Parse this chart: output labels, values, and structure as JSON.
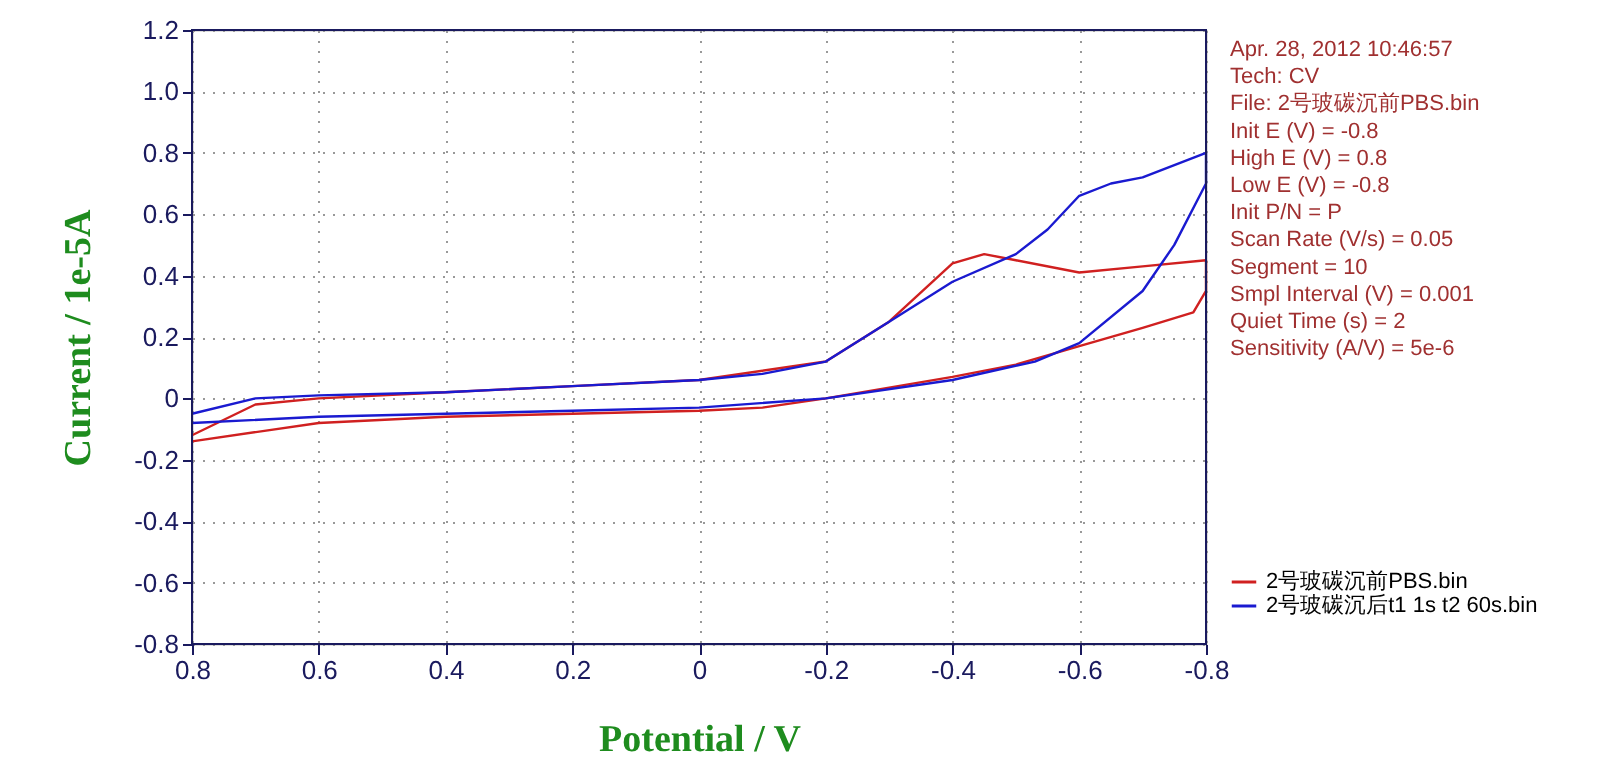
{
  "chart_data": {
    "type": "line",
    "xlabel": "Potential / V",
    "ylabel": "Current / 1e-5A",
    "xlim": [
      0.8,
      -0.8
    ],
    "xticks": [
      0.8,
      0.6,
      0.4,
      0.2,
      0,
      -0.2,
      -0.4,
      -0.6,
      -0.8
    ],
    "ylim": [
      -0.8,
      1.2
    ],
    "yticks": [
      -0.8,
      -0.6,
      -0.4,
      -0.2,
      0,
      0.2,
      0.4,
      0.6,
      0.8,
      {
        "value": 1.0,
        "label": "1.0"
      },
      1.2
    ],
    "grid": true,
    "legend": "right",
    "marker": "none",
    "line_style": "solid",
    "annotations": [
      "Apr. 28, 2012   10:46:57",
      "Tech: CV",
      "File: 2号玻碳沉前PBS.bin",
      "Init E (V) = -0.8",
      "High E (V) = 0.8",
      "Low E (V) = -0.8",
      "Init P/N = P",
      "Scan Rate (V/s) = 0.05",
      "Segment = 10",
      "Smpl Interval (V) = 0.001",
      "Quiet Time (s) = 2",
      "Sensitivity (A/V) = 5e-6"
    ],
    "series": [
      {
        "name": "2号玻碳沉前PBS.bin",
        "color": "#d02020",
        "x": [
          0.8,
          0.7,
          0.6,
          0.4,
          0.2,
          0,
          -0.2,
          -0.3,
          -0.4,
          -0.45,
          -0.5,
          -0.6,
          -0.7,
          -0.8,
          -0.8,
          -0.78,
          -0.7,
          -0.6,
          -0.5,
          -0.4,
          -0.2,
          -0.1,
          0,
          0.2,
          0.4,
          0.6,
          0.8
        ],
        "values": [
          -0.12,
          -0.02,
          0.0,
          0.02,
          0.04,
          0.06,
          0.12,
          0.25,
          0.44,
          0.47,
          0.45,
          0.41,
          0.43,
          0.45,
          0.35,
          0.28,
          0.23,
          0.17,
          0.11,
          0.07,
          0.0,
          -0.03,
          -0.04,
          -0.05,
          -0.06,
          -0.08,
          -0.14
        ]
      },
      {
        "name": "2号玻碳沉后t1 1s t2 60s.bin",
        "color": "#1a1ad0",
        "x": [
          0.8,
          0.7,
          0.6,
          0.4,
          0.2,
          0,
          -0.1,
          -0.2,
          -0.3,
          -0.4,
          -0.5,
          -0.55,
          -0.6,
          -0.65,
          -0.7,
          -0.8,
          -0.8,
          -0.75,
          -0.7,
          -0.6,
          -0.53,
          -0.4,
          -0.2,
          0,
          0.2,
          0.4,
          0.6,
          0.8
        ],
        "values": [
          -0.05,
          0.0,
          0.01,
          0.02,
          0.04,
          0.06,
          0.08,
          0.12,
          0.25,
          0.38,
          0.47,
          0.55,
          0.66,
          0.7,
          0.72,
          0.8,
          0.7,
          0.5,
          0.35,
          0.18,
          0.12,
          0.06,
          0.0,
          -0.03,
          -0.04,
          -0.05,
          -0.06,
          -0.08
        ]
      }
    ]
  }
}
